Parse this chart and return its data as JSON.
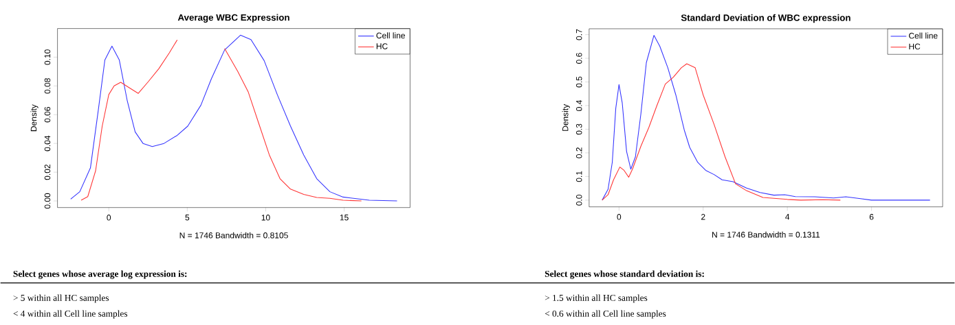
{
  "chart_data": [
    {
      "type": "line",
      "title": "Average WBC Expression",
      "xlabel": "N = 1746   Bandwidth = 0.8105",
      "ylabel": "Density",
      "xlim": [
        -3.27,
        19.2
      ],
      "ylim": [
        -0.0046,
        0.1199
      ],
      "xticks": [
        0,
        5,
        10,
        15
      ],
      "yticks": [
        {
          "value": 0,
          "label": "0.00"
        },
        {
          "value": 0.02,
          "label": "0.02"
        },
        {
          "value": 0.04,
          "label": "0.04"
        },
        {
          "value": 0.06,
          "label": "0.06"
        },
        {
          "value": 0.08,
          "label": "0.08"
        },
        {
          "value": 0.1,
          "label": "0.10"
        }
      ],
      "grid": false,
      "legend": "top right",
      "marker": "none",
      "line_style": "solid",
      "series": [
        {
          "name": "Cell line",
          "color": "#3333ff",
          "x": [
            -2.43,
            -1.85,
            -1.17,
            -0.67,
            -0.25,
            0.2,
            0.67,
            1.17,
            1.68,
            2.18,
            2.77,
            3.52,
            4.36,
            5.03,
            5.87,
            6.54,
            7.38,
            8.39,
            9.06,
            9.9,
            10.74,
            11.58,
            12.42,
            13.25,
            14.09,
            14.93,
            16.6,
            18.37
          ],
          "values": [
            0.0013,
            0.0064,
            0.023,
            0.063,
            0.098,
            0.1077,
            0.098,
            0.07,
            0.048,
            0.04,
            0.0378,
            0.04,
            0.0456,
            0.052,
            0.0666,
            0.085,
            0.105,
            0.1153,
            0.1122,
            0.0976,
            0.0739,
            0.052,
            0.032,
            0.0155,
            0.0064,
            0.0027,
            0.0005,
            0
          ]
        },
        {
          "name": "HC",
          "color": "#ff3333",
          "x": [
            -1.76,
            -1.34,
            -0.84,
            -0.42,
            0,
            0.34,
            0.76,
            1.34,
            1.88,
            2.52,
            3.19,
            3.86,
            4.36,
            4.7,
            5.6,
            6.54,
            7.38,
            8.22,
            8.89,
            9.56,
            10.23,
            10.91,
            11.58,
            12.42,
            13.25,
            14.09,
            14.93,
            16.1
          ],
          "values": [
            0.0005,
            0.003,
            0.021,
            0.052,
            0.074,
            0.08,
            0.0825,
            0.0785,
            0.0748,
            0.083,
            0.092,
            0.103,
            0.112,
            null,
            null,
            null,
            0.106,
            0.09,
            0.0757,
            0.0538,
            0.032,
            0.0155,
            0.0082,
            0.0046,
            0.0024,
            0.0018,
            0.0005,
            0
          ]
        }
      ],
      "annotations": [
        "Select genes whose average log expression is:",
        "> 5 within all HC samples",
        "< 4 within all Cell line samples"
      ]
    },
    {
      "type": "line",
      "title": "Standard Deviation of WBC expression",
      "xlabel": "N = 1746   Bandwidth = 0.1311",
      "ylabel": "Density",
      "xlim": [
        -0.71,
        7.69
      ],
      "ylim": [
        -0.0285,
        0.725
      ],
      "xticks": [
        0,
        2,
        4,
        6
      ],
      "yticks": [
        {
          "value": 0,
          "label": "0.0"
        },
        {
          "value": 0.1,
          "label": "0.1"
        },
        {
          "value": 0.2,
          "label": "0.2"
        },
        {
          "value": 0.3,
          "label": "0.3"
        },
        {
          "value": 0.4,
          "label": "0.4"
        },
        {
          "value": 0.5,
          "label": "0.5"
        },
        {
          "value": 0.6,
          "label": "0.6"
        },
        {
          "value": 0.7,
          "label": "0.7"
        }
      ],
      "grid": false,
      "legend": "top right",
      "marker": "none",
      "line_style": "solid",
      "series": [
        {
          "name": "Cell line",
          "color": "#3333ff",
          "x": [
            -0.4,
            -0.26,
            -0.16,
            -0.077,
            0,
            0.077,
            0.18,
            0.28,
            0.39,
            0.52,
            0.65,
            0.83,
            0.97,
            1.16,
            1.35,
            1.55,
            1.68,
            1.87,
            2.06,
            2.26,
            2.45,
            2.71,
            3.03,
            3.35,
            3.68,
            3.94,
            4.19,
            4.65,
            5.1,
            5.39,
            5.74,
            6,
            6.97,
            7.39
          ],
          "values": [
            0,
            0.046,
            0.16,
            0.388,
            0.489,
            0.411,
            0.206,
            0.131,
            0.183,
            0.365,
            0.582,
            0.697,
            0.651,
            0.56,
            0.445,
            0.297,
            0.223,
            0.16,
            0.126,
            0.108,
            0.086,
            0.078,
            0.051,
            0.032,
            0.021,
            0.023,
            0.015,
            0.014,
            0.009,
            0.014,
            0.006,
            0,
            0,
            0
          ]
        },
        {
          "name": "HC",
          "color": "#ff3333",
          "x": [
            -0.4,
            -0.26,
            -0.13,
            0.02,
            0.12,
            0.23,
            0.32,
            0.52,
            0.71,
            0.9,
            1.1,
            1.29,
            1.48,
            1.61,
            1.81,
            2,
            2.26,
            2.52,
            2.77,
            3.03,
            3.42,
            4,
            4.32,
            4.84,
            5.26
          ],
          "values": [
            0,
            0.023,
            0.086,
            0.14,
            0.126,
            0.097,
            0.131,
            0.228,
            0.308,
            0.4,
            0.491,
            0.52,
            0.56,
            0.577,
            0.56,
            0.445,
            0.32,
            0.183,
            0.069,
            0.04,
            0.011,
            0.003,
            0,
            0.002,
            0
          ]
        }
      ],
      "annotations": [
        "Select genes whose standard deviation is:",
        "> 1.5 within all HC samples",
        "< 0.6 within all Cell line samples"
      ]
    }
  ]
}
